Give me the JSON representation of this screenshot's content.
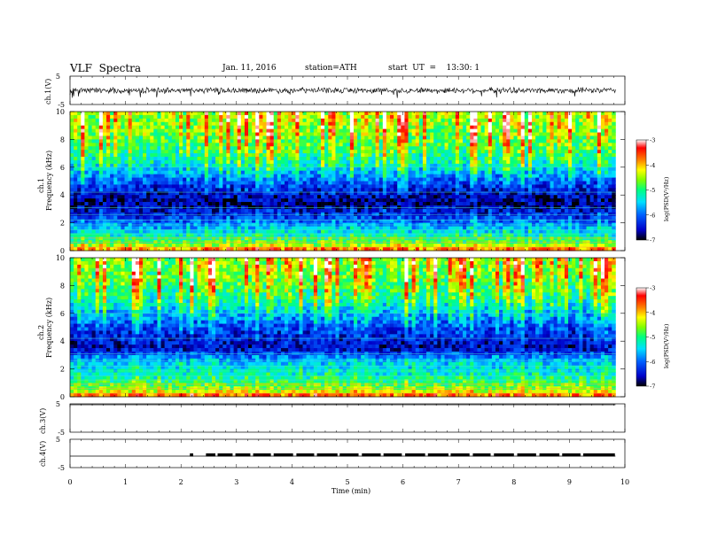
{
  "header": {
    "title": "VLF  Spectra",
    "date": "Jan. 11, 2016",
    "station": "station=ATH",
    "start": "start  UT  =    13:30: 1"
  },
  "panels": {
    "ch1_v_label": "ch.1(V)",
    "ch1_spec_label": "ch.1",
    "ch1_freq_label": "Frequency  (kHz)",
    "ch2_spec_label": "ch.2",
    "ch2_freq_label": "Frequency  (kHz)",
    "ch3_v_label": "ch.3(V)",
    "ch4_v_label": "ch.4(V)",
    "colorbar1_label": "log(PSD(V²/Hz)",
    "colorbar2_label": "log(PSD(V²/Hz)"
  },
  "chart_data": {
    "type": "heatmap",
    "title": "VLF  Spectra",
    "xlabel": "Time  (min)",
    "x_ticks": [
      "0",
      "1",
      "2",
      "3",
      "4",
      "5",
      "6",
      "7",
      "8",
      "9",
      "10"
    ],
    "xlim": [
      0,
      10
    ],
    "data_end_min": 9.83,
    "voltage_panels": [
      {
        "name": "ch.1(V)",
        "ylim": [
          -5,
          5
        ],
        "ticks": [
          "5",
          "-5"
        ],
        "baseline": 0,
        "noise_amplitude": 1.2
      },
      {
        "name": "ch.3(V)",
        "ylim": [
          -5,
          5
        ],
        "ticks": [
          "5",
          "-5"
        ],
        "baseline": 5
      },
      {
        "name": "ch.4(V)",
        "ylim": [
          -5,
          5
        ],
        "ticks": [
          "5",
          "-5"
        ],
        "baseline": 0,
        "pulse_train_segments_min": [
          [
            2.16,
            2.22
          ],
          [
            2.45,
            2.62
          ],
          [
            2.66,
            2.93
          ],
          [
            2.98,
            3.25
          ],
          [
            3.3,
            3.62
          ],
          [
            3.67,
            4.02
          ],
          [
            4.08,
            4.4
          ],
          [
            4.45,
            4.82
          ],
          [
            4.86,
            5.2
          ],
          [
            5.26,
            5.6
          ],
          [
            5.65,
            5.98
          ],
          [
            6.04,
            6.4
          ],
          [
            6.45,
            6.82
          ],
          [
            6.86,
            7.2
          ],
          [
            7.26,
            7.58
          ],
          [
            7.64,
            8.0
          ],
          [
            8.06,
            8.4
          ],
          [
            8.46,
            8.82
          ],
          [
            8.87,
            9.2
          ],
          [
            9.25,
            9.82
          ]
        ],
        "pulse_level": 0.5
      }
    ],
    "spectrograms": [
      {
        "name": "ch.1",
        "ylabel": "Frequency  (kHz)",
        "ylim": [
          0,
          10
        ],
        "y_ticks": [
          "0",
          "2",
          "4",
          "6",
          "8",
          "10"
        ],
        "mean_logPSD_profile": [
          {
            "f": 0,
            "v": -3.6
          },
          {
            "f": 0.5,
            "v": -4.8
          },
          {
            "f": 1.5,
            "v": -5.6
          },
          {
            "f": 2.5,
            "v": -6.4
          },
          {
            "f": 3.5,
            "v": -6.8
          },
          {
            "f": 5.0,
            "v": -6.2
          },
          {
            "f": 6.0,
            "v": -5.5
          },
          {
            "f": 7.0,
            "v": -5.2
          },
          {
            "f": 8.0,
            "v": -5.0
          },
          {
            "f": 9.0,
            "v": -4.8
          },
          {
            "f": 10.0,
            "v": -4.8
          }
        ]
      },
      {
        "name": "ch.2",
        "ylabel": "Frequency  (kHz)",
        "ylim": [
          0,
          10
        ],
        "y_ticks": [
          "0",
          "2",
          "4",
          "6",
          "8",
          "10"
        ],
        "mean_logPSD_profile": [
          {
            "f": 0,
            "v": -3.6
          },
          {
            "f": 0.5,
            "v": -4.6
          },
          {
            "f": 1.5,
            "v": -5.3
          },
          {
            "f": 2.5,
            "v": -5.6
          },
          {
            "f": 3.5,
            "v": -6.6
          },
          {
            "f": 5.0,
            "v": -6.3
          },
          {
            "f": 6.0,
            "v": -5.8
          },
          {
            "f": 7.0,
            "v": -5.3
          },
          {
            "f": 8.0,
            "v": -5.1
          },
          {
            "f": 9.0,
            "v": -4.9
          },
          {
            "f": 10.0,
            "v": -4.9
          }
        ]
      }
    ],
    "colorbar": {
      "label": "log(PSD(V²/Hz)",
      "range": [
        -7,
        -3
      ],
      "ticks": [
        "-3",
        "-4",
        "-5",
        "-6",
        "-7"
      ],
      "colors": [
        "#000000",
        "#0000c8",
        "#0060ff",
        "#00e0ff",
        "#00ff80",
        "#80ff00",
        "#ffff00",
        "#ff8000",
        "#ff0000",
        "#ffffff"
      ]
    }
  }
}
